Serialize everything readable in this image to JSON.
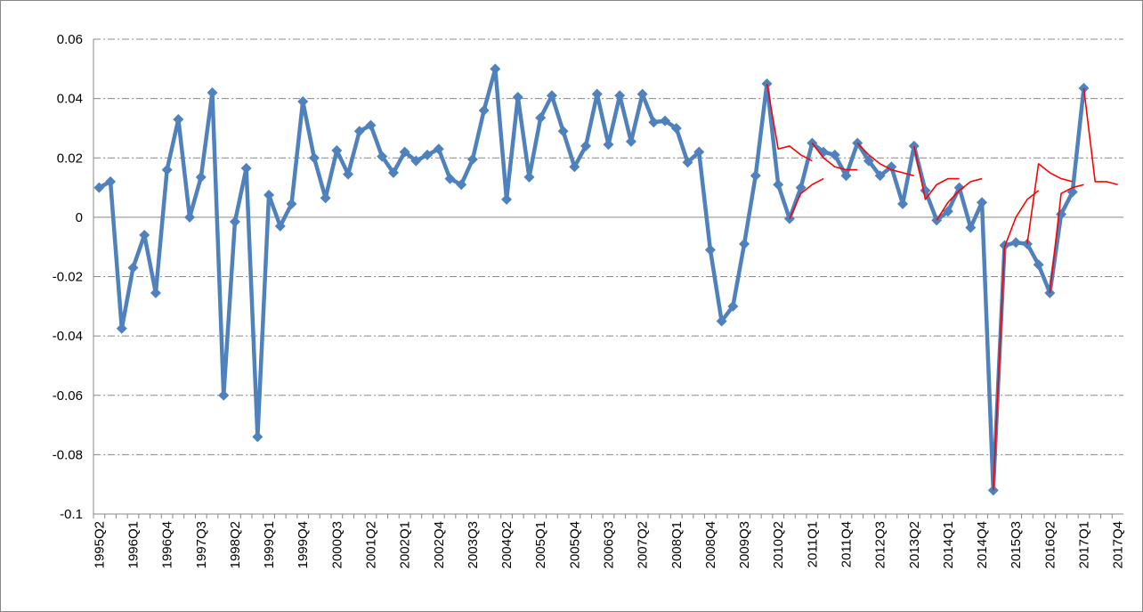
{
  "chart_data": {
    "type": "line",
    "categories": [
      "1995Q2",
      null,
      null,
      "1996Q1",
      null,
      null,
      "1996Q4",
      null,
      null,
      "1997Q3",
      null,
      null,
      "1998Q2",
      null,
      null,
      "1999Q1",
      null,
      null,
      "1999Q4",
      null,
      null,
      "2000Q3",
      null,
      null,
      "2001Q2",
      null,
      null,
      "2002Q1",
      null,
      null,
      "2002Q4",
      null,
      null,
      "2003Q3",
      null,
      null,
      "2004Q2",
      null,
      null,
      "2005Q1",
      null,
      null,
      "2005Q4",
      null,
      null,
      "2006Q3",
      null,
      null,
      "2007Q2",
      null,
      null,
      "2008Q1",
      null,
      null,
      "2008Q4",
      null,
      null,
      "2009Q3",
      null,
      null,
      "2010Q2",
      null,
      null,
      "2011Q1",
      null,
      null,
      "2011Q4",
      null,
      null,
      "2012Q3",
      null,
      null,
      "2013Q2",
      null,
      null,
      "2014Q1",
      null,
      null,
      "2014Q4",
      null,
      null,
      "2015Q3",
      null,
      null,
      "2016Q2",
      null,
      null,
      "2017Q1",
      null,
      null,
      "2017Q4"
    ],
    "ylim": [
      -0.1,
      0.06
    ],
    "yticks": [
      -0.1,
      -0.08,
      -0.06,
      -0.04,
      -0.02,
      0,
      0.02,
      0.04,
      0.06
    ],
    "grid": true,
    "series": [
      {
        "color": "#4f81bd",
        "marker": "diamond",
        "values": [
          0.01,
          0.012,
          -0.0375,
          -0.017,
          -0.006,
          -0.0255,
          0.016,
          0.033,
          0,
          0.0135,
          0.042,
          -0.06,
          -0.0015,
          0.0165,
          -0.074,
          0.0075,
          -0.003,
          0.0045,
          0.039,
          0.02,
          0.0065,
          0.0225,
          0.0145,
          0.029,
          0.031,
          0.0205,
          0.015,
          0.022,
          0.019,
          0.021,
          0.023,
          0.013,
          0.011,
          0.0195,
          0.036,
          0.05,
          0.006,
          0.0405,
          0.0135,
          0.0335,
          0.041,
          0.029,
          0.017,
          0.024,
          0.0415,
          0.0245,
          0.041,
          0.0255,
          0.0415,
          0.032,
          0.0325,
          0.03,
          0.0185,
          0.022,
          -0.011,
          -0.035,
          -0.03,
          -0.009,
          0.014,
          0.045,
          0.011,
          -0.0005,
          0.01,
          0.025,
          0.022,
          0.021,
          0.014,
          0.025,
          0.019,
          0.014,
          0.017,
          0.0045,
          0.024,
          0.009,
          -0.001,
          0.002,
          0.01,
          -0.0035,
          0.005,
          -0.092,
          -0.0095,
          -0.0085,
          -0.009,
          -0.016,
          -0.0255,
          0.001,
          0.0085,
          0.0435,
          null,
          null,
          null
        ]
      },
      {
        "color": "#ff0000",
        "values": [
          null,
          null,
          null,
          null,
          null,
          null,
          null,
          null,
          null,
          null,
          null,
          null,
          null,
          null,
          null,
          null,
          null,
          null,
          null,
          null,
          null,
          null,
          null,
          null,
          null,
          null,
          null,
          null,
          null,
          null,
          null,
          null,
          null,
          null,
          null,
          null,
          null,
          null,
          null,
          null,
          null,
          null,
          null,
          null,
          null,
          null,
          null,
          null,
          null,
          null,
          null,
          null,
          null,
          null,
          null,
          null,
          null,
          null,
          null,
          0.045,
          0.023,
          0.024,
          0.021,
          0.019,
          null,
          null,
          null,
          null,
          null,
          null,
          null,
          null,
          null,
          null,
          null,
          null,
          null,
          null,
          null,
          null,
          null,
          null,
          null,
          null,
          null,
          null,
          null,
          null,
          null,
          null,
          null
        ]
      },
      {
        "color": "#ff0000",
        "values": [
          null,
          null,
          null,
          null,
          null,
          null,
          null,
          null,
          null,
          null,
          null,
          null,
          null,
          null,
          null,
          null,
          null,
          null,
          null,
          null,
          null,
          null,
          null,
          null,
          null,
          null,
          null,
          null,
          null,
          null,
          null,
          null,
          null,
          null,
          null,
          null,
          null,
          null,
          null,
          null,
          null,
          null,
          null,
          null,
          null,
          null,
          null,
          null,
          null,
          null,
          null,
          null,
          null,
          null,
          null,
          null,
          null,
          null,
          null,
          null,
          null,
          -0.0005,
          0.008,
          0.011,
          0.013,
          null,
          null,
          null,
          null,
          null,
          null,
          null,
          null,
          null,
          null,
          null,
          null,
          null,
          null,
          null,
          null,
          null,
          null,
          null,
          null,
          null,
          null,
          null,
          null,
          null,
          null
        ]
      },
      {
        "color": "#ff0000",
        "values": [
          null,
          null,
          null,
          null,
          null,
          null,
          null,
          null,
          null,
          null,
          null,
          null,
          null,
          null,
          null,
          null,
          null,
          null,
          null,
          null,
          null,
          null,
          null,
          null,
          null,
          null,
          null,
          null,
          null,
          null,
          null,
          null,
          null,
          null,
          null,
          null,
          null,
          null,
          null,
          null,
          null,
          null,
          null,
          null,
          null,
          null,
          null,
          null,
          null,
          null,
          null,
          null,
          null,
          null,
          null,
          null,
          null,
          null,
          null,
          null,
          null,
          null,
          null,
          0.025,
          0.02,
          0.017,
          0.016,
          0.016,
          null,
          null,
          null,
          null,
          null,
          null,
          null,
          null,
          null,
          null,
          null,
          null,
          null,
          null,
          null,
          null,
          null,
          null,
          null,
          null,
          null,
          null,
          null
        ]
      },
      {
        "color": "#ff0000",
        "values": [
          null,
          null,
          null,
          null,
          null,
          null,
          null,
          null,
          null,
          null,
          null,
          null,
          null,
          null,
          null,
          null,
          null,
          null,
          null,
          null,
          null,
          null,
          null,
          null,
          null,
          null,
          null,
          null,
          null,
          null,
          null,
          null,
          null,
          null,
          null,
          null,
          null,
          null,
          null,
          null,
          null,
          null,
          null,
          null,
          null,
          null,
          null,
          null,
          null,
          null,
          null,
          null,
          null,
          null,
          null,
          null,
          null,
          null,
          null,
          null,
          null,
          null,
          null,
          null,
          null,
          null,
          null,
          0.025,
          0.021,
          0.018,
          0.016,
          0.015,
          0.014,
          null,
          null,
          null,
          null,
          null,
          null,
          null,
          null,
          null,
          null,
          null,
          null,
          null,
          null,
          null,
          null,
          null,
          null
        ]
      },
      {
        "color": "#ff0000",
        "values": [
          null,
          null,
          null,
          null,
          null,
          null,
          null,
          null,
          null,
          null,
          null,
          null,
          null,
          null,
          null,
          null,
          null,
          null,
          null,
          null,
          null,
          null,
          null,
          null,
          null,
          null,
          null,
          null,
          null,
          null,
          null,
          null,
          null,
          null,
          null,
          null,
          null,
          null,
          null,
          null,
          null,
          null,
          null,
          null,
          null,
          null,
          null,
          null,
          null,
          null,
          null,
          null,
          null,
          null,
          null,
          null,
          null,
          null,
          null,
          null,
          null,
          null,
          null,
          null,
          null,
          null,
          null,
          null,
          null,
          null,
          null,
          null,
          0.024,
          0.006,
          0.011,
          0.013,
          0.013,
          null,
          null,
          null,
          null,
          null,
          null,
          null,
          null,
          null,
          null,
          null,
          null,
          null,
          null
        ]
      },
      {
        "color": "#ff0000",
        "values": [
          null,
          null,
          null,
          null,
          null,
          null,
          null,
          null,
          null,
          null,
          null,
          null,
          null,
          null,
          null,
          null,
          null,
          null,
          null,
          null,
          null,
          null,
          null,
          null,
          null,
          null,
          null,
          null,
          null,
          null,
          null,
          null,
          null,
          null,
          null,
          null,
          null,
          null,
          null,
          null,
          null,
          null,
          null,
          null,
          null,
          null,
          null,
          null,
          null,
          null,
          null,
          null,
          null,
          null,
          null,
          null,
          null,
          null,
          null,
          null,
          null,
          null,
          null,
          null,
          null,
          null,
          null,
          null,
          null,
          null,
          null,
          null,
          null,
          null,
          -0.001,
          0.005,
          0.009,
          0.012,
          0.013,
          null,
          null,
          null,
          null,
          null,
          null,
          null,
          null,
          null,
          null,
          null,
          null
        ]
      },
      {
        "color": "#ff0000",
        "values": [
          null,
          null,
          null,
          null,
          null,
          null,
          null,
          null,
          null,
          null,
          null,
          null,
          null,
          null,
          null,
          null,
          null,
          null,
          null,
          null,
          null,
          null,
          null,
          null,
          null,
          null,
          null,
          null,
          null,
          null,
          null,
          null,
          null,
          null,
          null,
          null,
          null,
          null,
          null,
          null,
          null,
          null,
          null,
          null,
          null,
          null,
          null,
          null,
          null,
          null,
          null,
          null,
          null,
          null,
          null,
          null,
          null,
          null,
          null,
          null,
          null,
          null,
          null,
          null,
          null,
          null,
          null,
          null,
          null,
          null,
          null,
          null,
          null,
          null,
          null,
          null,
          null,
          null,
          null,
          -0.092,
          -0.01,
          0,
          0.006,
          0.009,
          null,
          null,
          null,
          null,
          null,
          null,
          null
        ]
      },
      {
        "color": "#ff0000",
        "values": [
          null,
          null,
          null,
          null,
          null,
          null,
          null,
          null,
          null,
          null,
          null,
          null,
          null,
          null,
          null,
          null,
          null,
          null,
          null,
          null,
          null,
          null,
          null,
          null,
          null,
          null,
          null,
          null,
          null,
          null,
          null,
          null,
          null,
          null,
          null,
          null,
          null,
          null,
          null,
          null,
          null,
          null,
          null,
          null,
          null,
          null,
          null,
          null,
          null,
          null,
          null,
          null,
          null,
          null,
          null,
          null,
          null,
          null,
          null,
          null,
          null,
          null,
          null,
          null,
          null,
          null,
          null,
          null,
          null,
          null,
          null,
          null,
          null,
          null,
          null,
          null,
          null,
          null,
          null,
          null,
          null,
          null,
          -0.009,
          0.018,
          0.015,
          0.013,
          0.012,
          null,
          null,
          null,
          null
        ]
      },
      {
        "color": "#ff0000",
        "values": [
          null,
          null,
          null,
          null,
          null,
          null,
          null,
          null,
          null,
          null,
          null,
          null,
          null,
          null,
          null,
          null,
          null,
          null,
          null,
          null,
          null,
          null,
          null,
          null,
          null,
          null,
          null,
          null,
          null,
          null,
          null,
          null,
          null,
          null,
          null,
          null,
          null,
          null,
          null,
          null,
          null,
          null,
          null,
          null,
          null,
          null,
          null,
          null,
          null,
          null,
          null,
          null,
          null,
          null,
          null,
          null,
          null,
          null,
          null,
          null,
          null,
          null,
          null,
          null,
          null,
          null,
          null,
          null,
          null,
          null,
          null,
          null,
          null,
          null,
          null,
          null,
          null,
          null,
          null,
          null,
          null,
          null,
          null,
          null,
          -0.0255,
          0.008,
          0.01,
          0.011,
          null,
          null,
          null
        ]
      },
      {
        "color": "#ff0000",
        "values": [
          null,
          null,
          null,
          null,
          null,
          null,
          null,
          null,
          null,
          null,
          null,
          null,
          null,
          null,
          null,
          null,
          null,
          null,
          null,
          null,
          null,
          null,
          null,
          null,
          null,
          null,
          null,
          null,
          null,
          null,
          null,
          null,
          null,
          null,
          null,
          null,
          null,
          null,
          null,
          null,
          null,
          null,
          null,
          null,
          null,
          null,
          null,
          null,
          null,
          null,
          null,
          null,
          null,
          null,
          null,
          null,
          null,
          null,
          null,
          null,
          null,
          null,
          null,
          null,
          null,
          null,
          null,
          null,
          null,
          null,
          null,
          null,
          null,
          null,
          null,
          null,
          null,
          null,
          null,
          null,
          null,
          null,
          null,
          null,
          null,
          null,
          null,
          0.0435,
          0.012,
          0.012,
          0.011
        ]
      }
    ]
  }
}
